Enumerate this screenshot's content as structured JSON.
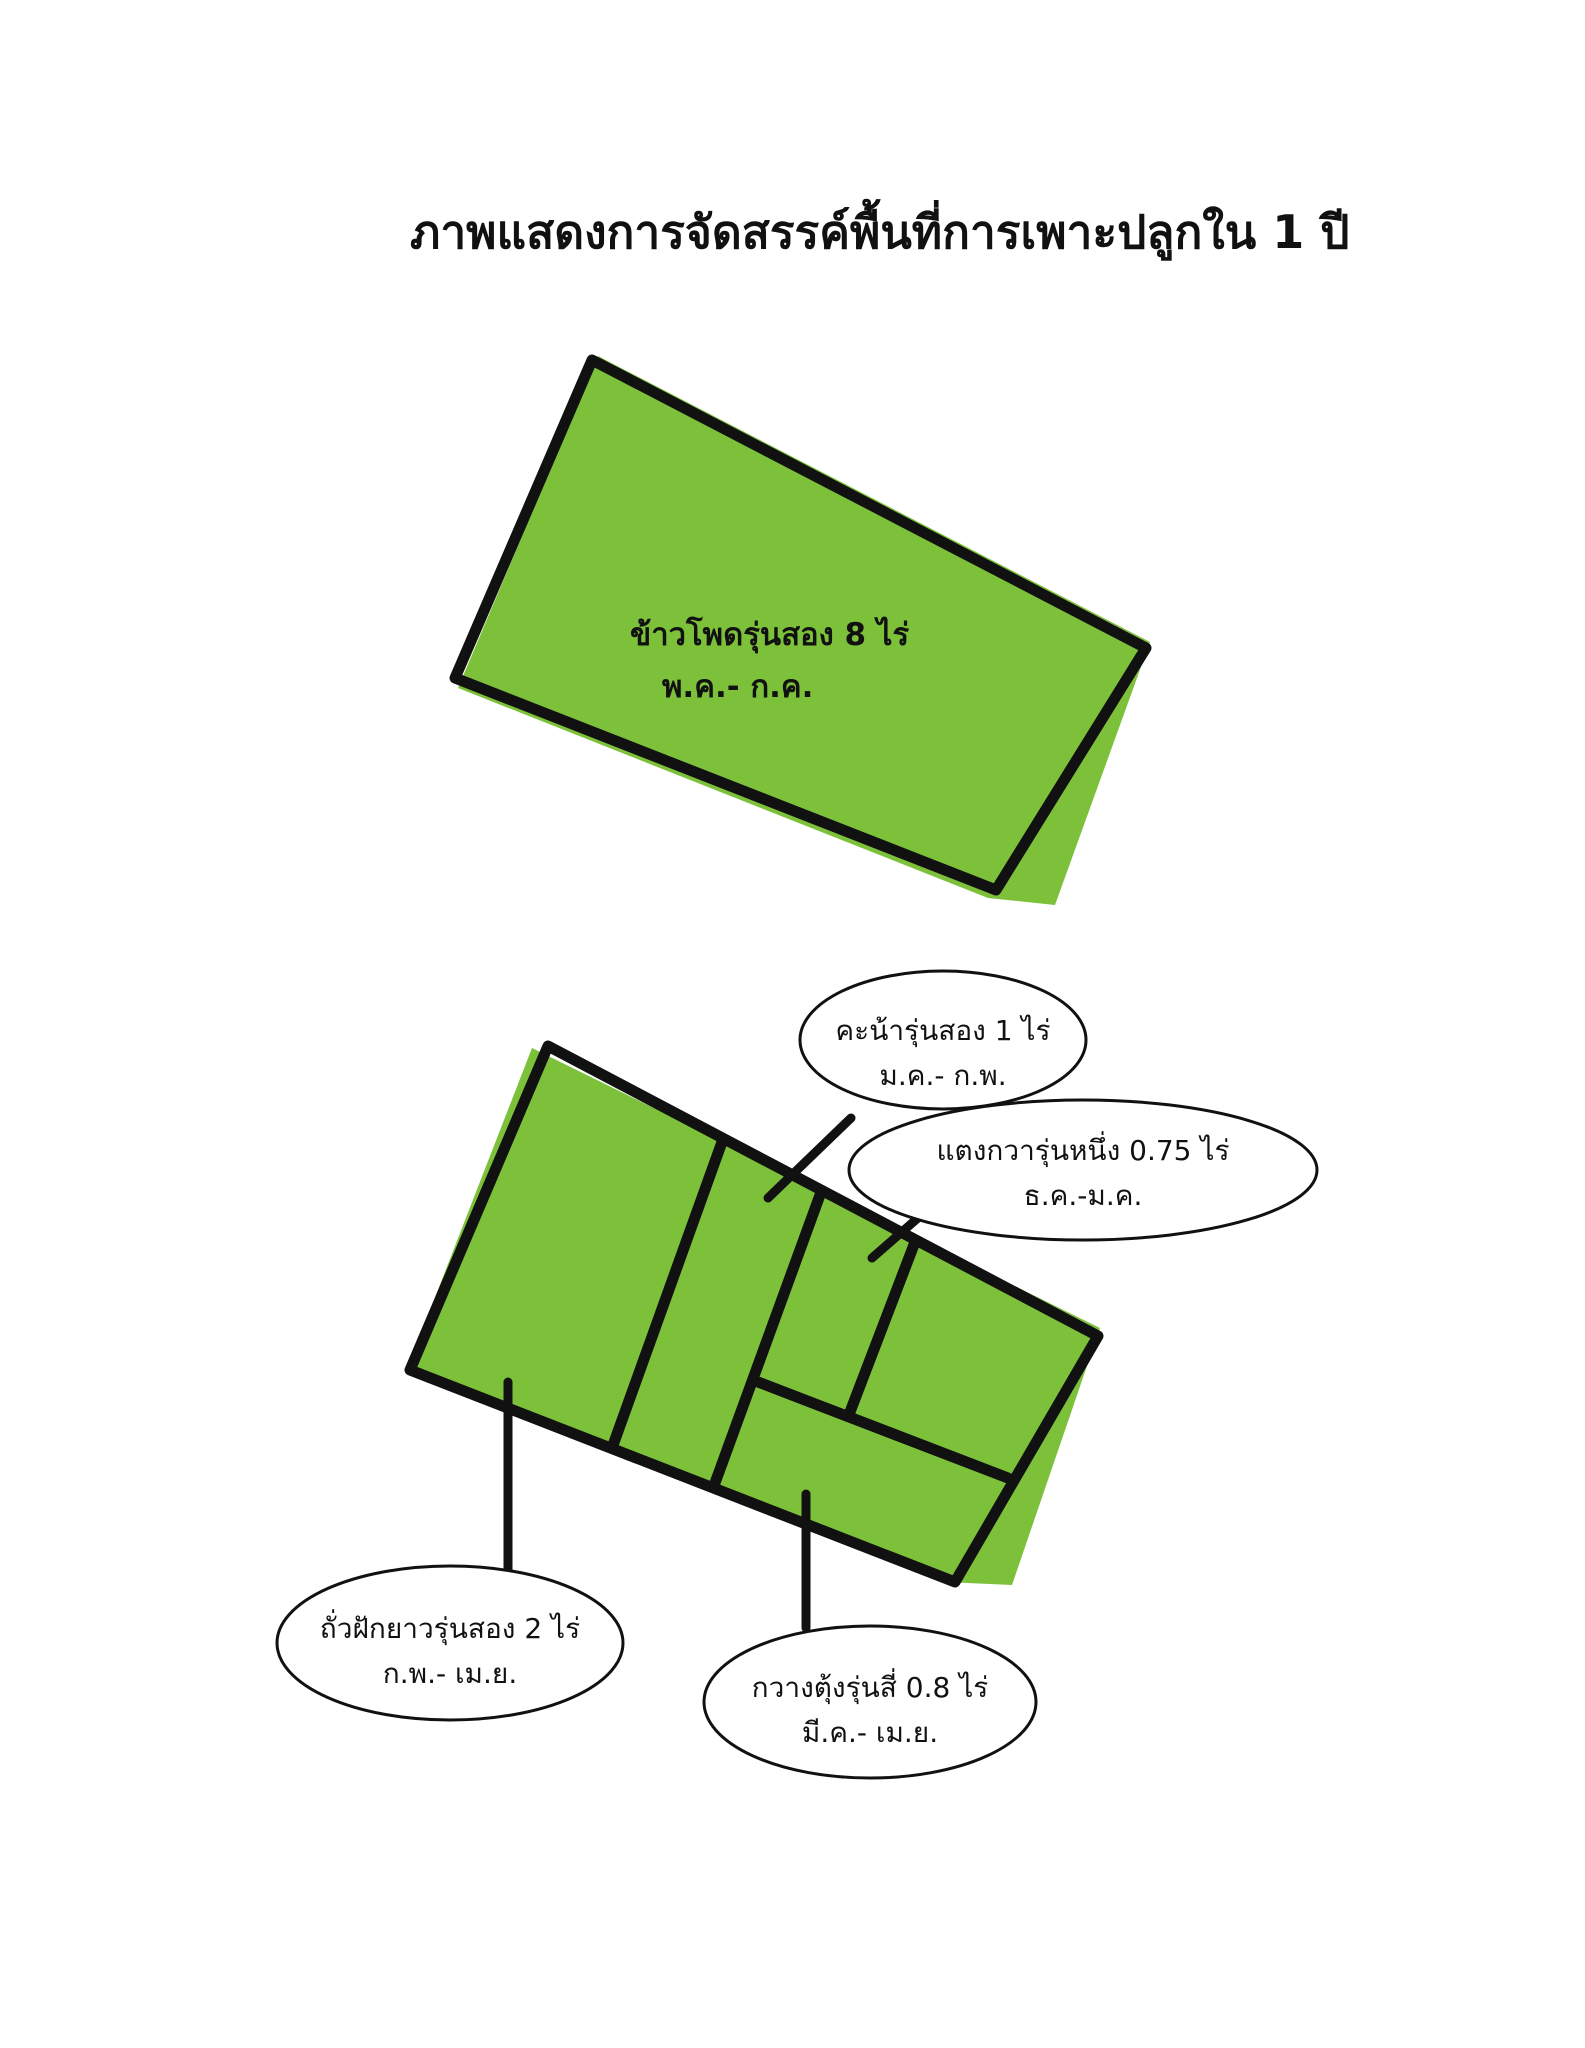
{
  "title": "ภาพแสดงการจัดสรรค์พื้นที่การเพาะปลูกใน 1 ปี",
  "colors": {
    "field_green": "#7dc13a",
    "outline": "#111111",
    "background": "#ffffff"
  },
  "field_one": {
    "crop": "ข้าวโพดรุ่นสอง 8 ไร่",
    "period": "พ.ค.- ก.ค."
  },
  "field_two": {
    "callouts": [
      {
        "crop": "คะน้ารุ่นสอง 1 ไร่",
        "period": "ม.ค.- ก.พ."
      },
      {
        "crop": "แตงกวารุ่นหนึ่ง 0.75 ไร่",
        "period": "ธ.ค.-ม.ค."
      },
      {
        "crop": "ถั่วฝักยาวรุ่นสอง 2 ไร่",
        "period": "ก.พ.- เม.ย."
      },
      {
        "crop": "กวางตุ้งรุ่นสี่ 0.8 ไร่",
        "period": "มี.ค.- เม.ย."
      }
    ]
  }
}
